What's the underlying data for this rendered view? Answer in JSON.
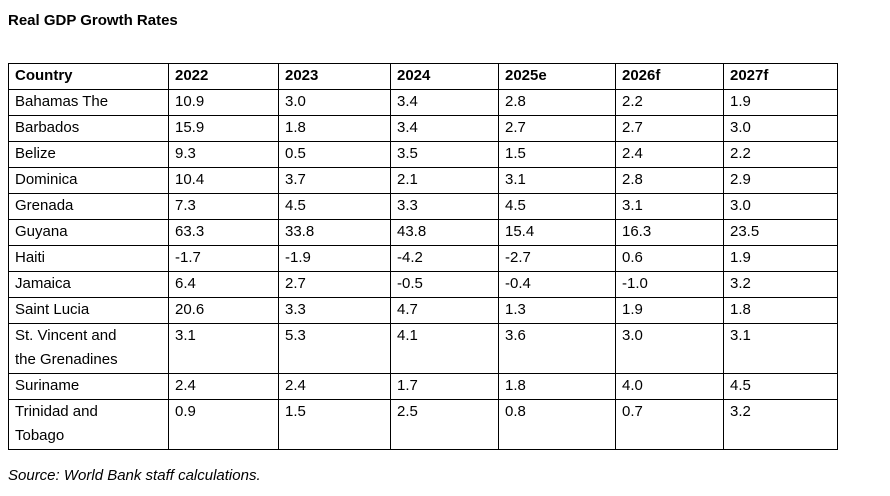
{
  "page_title": "Real GDP Growth Rates",
  "colors": {
    "background": "#ffffff",
    "border": "#000000",
    "text": "#000000"
  },
  "chart_data": {
    "type": "table",
    "title": "Real GDP Growth Rates",
    "columns": [
      "Country",
      "2022",
      "2023",
      "2024",
      "2025e",
      "2026f",
      "2027f"
    ],
    "rows": [
      {
        "country": "Bahamas The",
        "values": [
          "10.9",
          "3.0",
          "3.4",
          "2.8",
          "2.2",
          "1.9"
        ]
      },
      {
        "country": "Barbados",
        "values": [
          "15.9",
          "1.8",
          "3.4",
          "2.7",
          "2.7",
          "3.0"
        ]
      },
      {
        "country": "Belize",
        "values": [
          "9.3",
          "0.5",
          "3.5",
          "1.5",
          "2.4",
          "2.2"
        ]
      },
      {
        "country": "Dominica",
        "values": [
          "10.4",
          "3.7",
          "2.1",
          "3.1",
          "2.8",
          "2.9"
        ]
      },
      {
        "country": "Grenada",
        "values": [
          "7.3",
          "4.5",
          "3.3",
          "4.5",
          "3.1",
          "3.0"
        ]
      },
      {
        "country": "Guyana",
        "values": [
          "63.3",
          "33.8",
          "43.8",
          "15.4",
          "16.3",
          "23.5"
        ]
      },
      {
        "country": "Haiti",
        "values": [
          "-1.7",
          "-1.9",
          "-4.2",
          "-2.7",
          "0.6",
          "1.9"
        ]
      },
      {
        "country": "Jamaica",
        "values": [
          "6.4",
          "2.7",
          "-0.5",
          "-0.4",
          "-1.0",
          "3.2"
        ]
      },
      {
        "country": "Saint Lucia",
        "values": [
          "20.6",
          "3.3",
          "4.7",
          "1.3",
          "1.9",
          "1.8"
        ]
      },
      {
        "country": "St. Vincent and\nthe Grenadines",
        "values": [
          "3.1",
          "5.3",
          "4.1",
          "3.6",
          "3.0",
          "3.1"
        ]
      },
      {
        "country": "Suriname",
        "values": [
          "2.4",
          "2.4",
          "1.7",
          "1.8",
          "4.0",
          "4.5"
        ]
      },
      {
        "country": "Trinidad and\nTobago",
        "values": [
          "0.9",
          "1.5",
          "2.5",
          "0.8",
          "0.7",
          "3.2"
        ]
      }
    ],
    "source": "Source: World Bank staff calculations."
  }
}
